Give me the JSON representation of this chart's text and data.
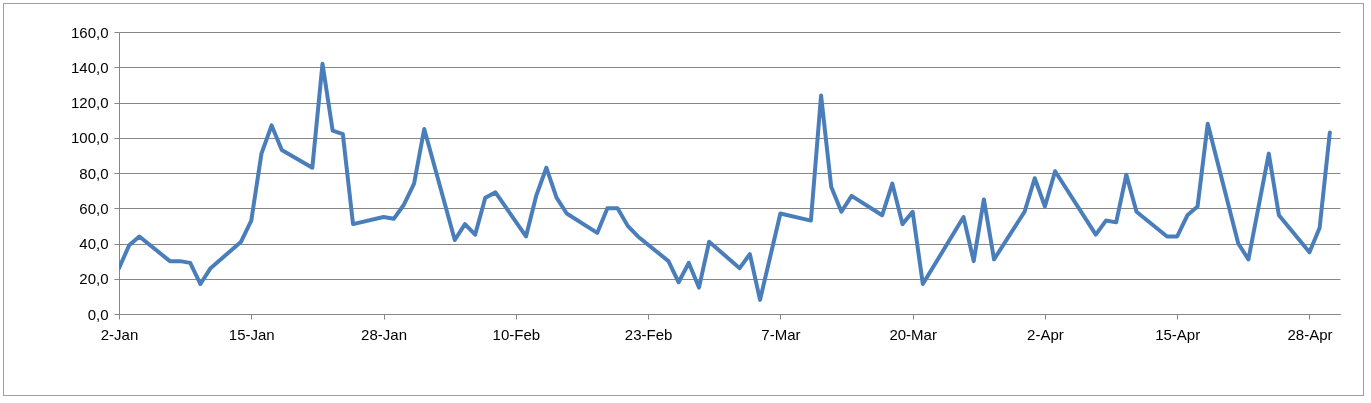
{
  "chart_data": {
    "type": "line",
    "x": [
      "--01-02",
      "--01-03",
      "--01-04",
      "--01-07",
      "--01-08",
      "--01-09",
      "--01-10",
      "--01-11",
      "--01-14",
      "--01-15",
      "--01-16",
      "--01-17",
      "--01-18",
      "--01-21",
      "--01-22",
      "--01-23",
      "--01-24",
      "--01-25",
      "--01-28",
      "--01-29",
      "--01-30",
      "--01-31",
      "--02-01",
      "--02-04",
      "--02-05",
      "--02-06",
      "--02-07",
      "--02-08",
      "--02-11",
      "--02-12",
      "--02-13",
      "--02-14",
      "--02-15",
      "--02-18",
      "--02-19",
      "--02-20",
      "--02-21",
      "--02-22",
      "--02-25",
      "--02-26",
      "--02-27",
      "--02-28",
      "--02-29",
      "--03-03",
      "--03-04",
      "--03-05",
      "--03-07",
      "--03-10",
      "--03-11",
      "--03-12",
      "--03-13",
      "--03-14",
      "--03-17",
      "--03-18",
      "--03-19",
      "--03-20",
      "--03-21",
      "--03-25",
      "--03-26",
      "--03-27",
      "--03-28",
      "--03-31",
      "--04-01",
      "--04-02",
      "--04-03",
      "--04-07",
      "--04-08",
      "--04-09",
      "--04-10",
      "--04-11",
      "--04-14",
      "--04-15",
      "--04-16",
      "--04-17",
      "--04-18",
      "--04-21",
      "--04-22",
      "--04-24",
      "--04-25",
      "--04-28",
      "--04-29",
      "--04-30"
    ],
    "series": [
      {
        "color": "#4a7ebb",
        "values": [
          26,
          39,
          44,
          30,
          30,
          29,
          17,
          26,
          41,
          53,
          91,
          107,
          93,
          83,
          142,
          104,
          102,
          51,
          55,
          54,
          62,
          74,
          105,
          42,
          51,
          45,
          66,
          69,
          44,
          67,
          83,
          66,
          57,
          46,
          60,
          60,
          50,
          44,
          30,
          18,
          29,
          15,
          41,
          26,
          34,
          8,
          57,
          53,
          124,
          72,
          58,
          67,
          56,
          74,
          51,
          58,
          17,
          55,
          30,
          65,
          31,
          58,
          77,
          61,
          81,
          45,
          53,
          52,
          79,
          58,
          44,
          44,
          56,
          61,
          108,
          40,
          31,
          91,
          56,
          35,
          49,
          103
        ]
      }
    ],
    "xlim": [
      "--01-02",
      "--05-01"
    ],
    "xticks": [
      {
        "value": "--01-02",
        "label": "2-Jan"
      },
      {
        "value": "--01-15",
        "label": "15-Jan"
      },
      {
        "value": "--01-28",
        "label": "28-Jan"
      },
      {
        "value": "--02-10",
        "label": "10-Feb"
      },
      {
        "value": "--02-23",
        "label": "23-Feb"
      },
      {
        "value": "--03-07",
        "label": "7-Mar"
      },
      {
        "value": "--03-20",
        "label": "20-Mar"
      },
      {
        "value": "--04-02",
        "label": "2-Apr"
      },
      {
        "value": "--04-15",
        "label": "15-Apr"
      },
      {
        "value": "--04-28",
        "label": "28-Apr"
      }
    ],
    "ylim": [
      0,
      160
    ],
    "yticks": [
      {
        "value": 0,
        "label": "0,0"
      },
      {
        "value": 20,
        "label": "20,0"
      },
      {
        "value": 40,
        "label": "40,0"
      },
      {
        "value": 60,
        "label": "60,0"
      },
      {
        "value": 80,
        "label": "80,0"
      },
      {
        "value": 100,
        "label": "100,0"
      },
      {
        "value": 120,
        "label": "120,0"
      },
      {
        "value": 140,
        "label": "140,0"
      },
      {
        "value": 160,
        "label": "160,0"
      }
    ],
    "grid": "y"
  }
}
